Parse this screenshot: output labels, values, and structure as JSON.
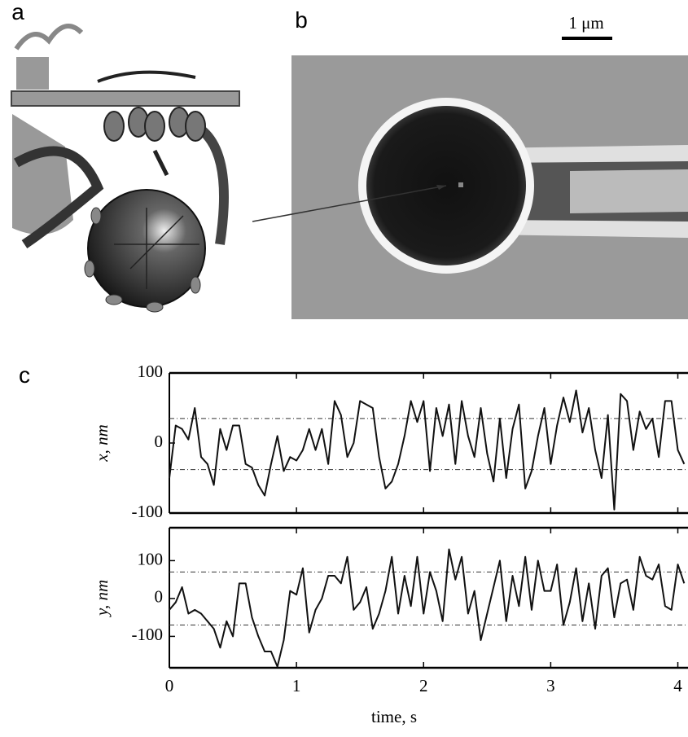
{
  "panel_labels": [
    "a",
    "b",
    "c"
  ],
  "scale_bar": "1 μm",
  "chart_data": [
    {
      "type": "line",
      "ylabel": "x, nm",
      "x": [
        0,
        0.05,
        0.1,
        0.15,
        0.2,
        0.25,
        0.3,
        0.35,
        0.4,
        0.45,
        0.5,
        0.55,
        0.6,
        0.65,
        0.7,
        0.75,
        0.8,
        0.85,
        0.9,
        0.95,
        1.0,
        1.05,
        1.1,
        1.15,
        1.2,
        1.25,
        1.3,
        1.35,
        1.4,
        1.45,
        1.5,
        1.55,
        1.6,
        1.65,
        1.7,
        1.75,
        1.8,
        1.85,
        1.9,
        1.95,
        2.0,
        2.05,
        2.1,
        2.15,
        2.2,
        2.25,
        2.3,
        2.35,
        2.4,
        2.45,
        2.5,
        2.55,
        2.6,
        2.65,
        2.7,
        2.75,
        2.8,
        2.85,
        2.9,
        2.95,
        3.0,
        3.05,
        3.1,
        3.15,
        3.2,
        3.25,
        3.3,
        3.35,
        3.4,
        3.45,
        3.5,
        3.55,
        3.6,
        3.65,
        3.7,
        3.75,
        3.8,
        3.85,
        3.9,
        3.95,
        4.0,
        4.05
      ],
      "series": [
        {
          "color": "#111111",
          "values": [
            -50,
            25,
            20,
            5,
            50,
            -20,
            -30,
            -60,
            20,
            -10,
            25,
            25,
            -30,
            -35,
            -60,
            -75,
            -30,
            10,
            -40,
            -20,
            -25,
            -10,
            20,
            -10,
            20,
            -30,
            60,
            40,
            -20,
            0,
            60,
            55,
            50,
            -20,
            -65,
            -55,
            -30,
            10,
            60,
            30,
            60,
            -40,
            50,
            10,
            55,
            -30,
            60,
            10,
            -20,
            50,
            -15,
            -55,
            35,
            -50,
            20,
            55,
            -65,
            -40,
            10,
            50,
            -30,
            25,
            65,
            30,
            75,
            15,
            50,
            -10,
            -50,
            40,
            -95,
            70,
            60,
            -10,
            45,
            20,
            35,
            -20,
            60,
            60,
            -10,
            -30
          ]
        }
      ],
      "xlim": [
        0,
        4.08
      ],
      "xticks": [
        0,
        1,
        2,
        3,
        4
      ],
      "xtick_labels": false,
      "ylim": [
        -100,
        100
      ],
      "yticks": [
        -100,
        0,
        100
      ],
      "hlines": [
        35,
        -38
      ]
    },
    {
      "type": "line",
      "ylabel": "y, nm",
      "xlabel": "time, s",
      "x": [
        0,
        0.05,
        0.1,
        0.15,
        0.2,
        0.25,
        0.3,
        0.35,
        0.4,
        0.45,
        0.5,
        0.55,
        0.6,
        0.65,
        0.7,
        0.75,
        0.8,
        0.85,
        0.9,
        0.95,
        1.0,
        1.05,
        1.1,
        1.15,
        1.2,
        1.25,
        1.3,
        1.35,
        1.4,
        1.45,
        1.5,
        1.55,
        1.6,
        1.65,
        1.7,
        1.75,
        1.8,
        1.85,
        1.9,
        1.95,
        2.0,
        2.05,
        2.1,
        2.15,
        2.2,
        2.25,
        2.3,
        2.35,
        2.4,
        2.45,
        2.5,
        2.55,
        2.6,
        2.65,
        2.7,
        2.75,
        2.8,
        2.85,
        2.9,
        2.95,
        3.0,
        3.05,
        3.1,
        3.15,
        3.2,
        3.25,
        3.3,
        3.35,
        3.4,
        3.45,
        3.5,
        3.55,
        3.6,
        3.65,
        3.7,
        3.75,
        3.8,
        3.85,
        3.9,
        3.95,
        4.0,
        4.05
      ],
      "series": [
        {
          "color": "#111111",
          "values": [
            -30,
            -10,
            30,
            -40,
            -30,
            -40,
            -60,
            -80,
            -130,
            -60,
            -100,
            40,
            40,
            -50,
            -100,
            -140,
            -140,
            -180,
            -110,
            20,
            10,
            80,
            -90,
            -30,
            0,
            60,
            60,
            40,
            110,
            -30,
            -10,
            30,
            -80,
            -40,
            20,
            110,
            -40,
            60,
            -20,
            110,
            -40,
            70,
            20,
            -60,
            130,
            50,
            110,
            -40,
            20,
            -110,
            -40,
            30,
            100,
            -60,
            60,
            -20,
            110,
            -30,
            100,
            20,
            20,
            90,
            -70,
            -10,
            80,
            -60,
            40,
            -80,
            60,
            80,
            -50,
            40,
            50,
            -30,
            110,
            60,
            50,
            90,
            -20,
            -30,
            90,
            40
          ]
        }
      ],
      "xlim": [
        0,
        4.08
      ],
      "xticks": [
        0,
        1,
        2,
        3,
        4
      ],
      "xtick_labels": true,
      "ylim": [
        -183,
        187
      ],
      "yticks": [
        -100,
        0,
        100
      ],
      "hlines": [
        70,
        -70
      ]
    }
  ]
}
